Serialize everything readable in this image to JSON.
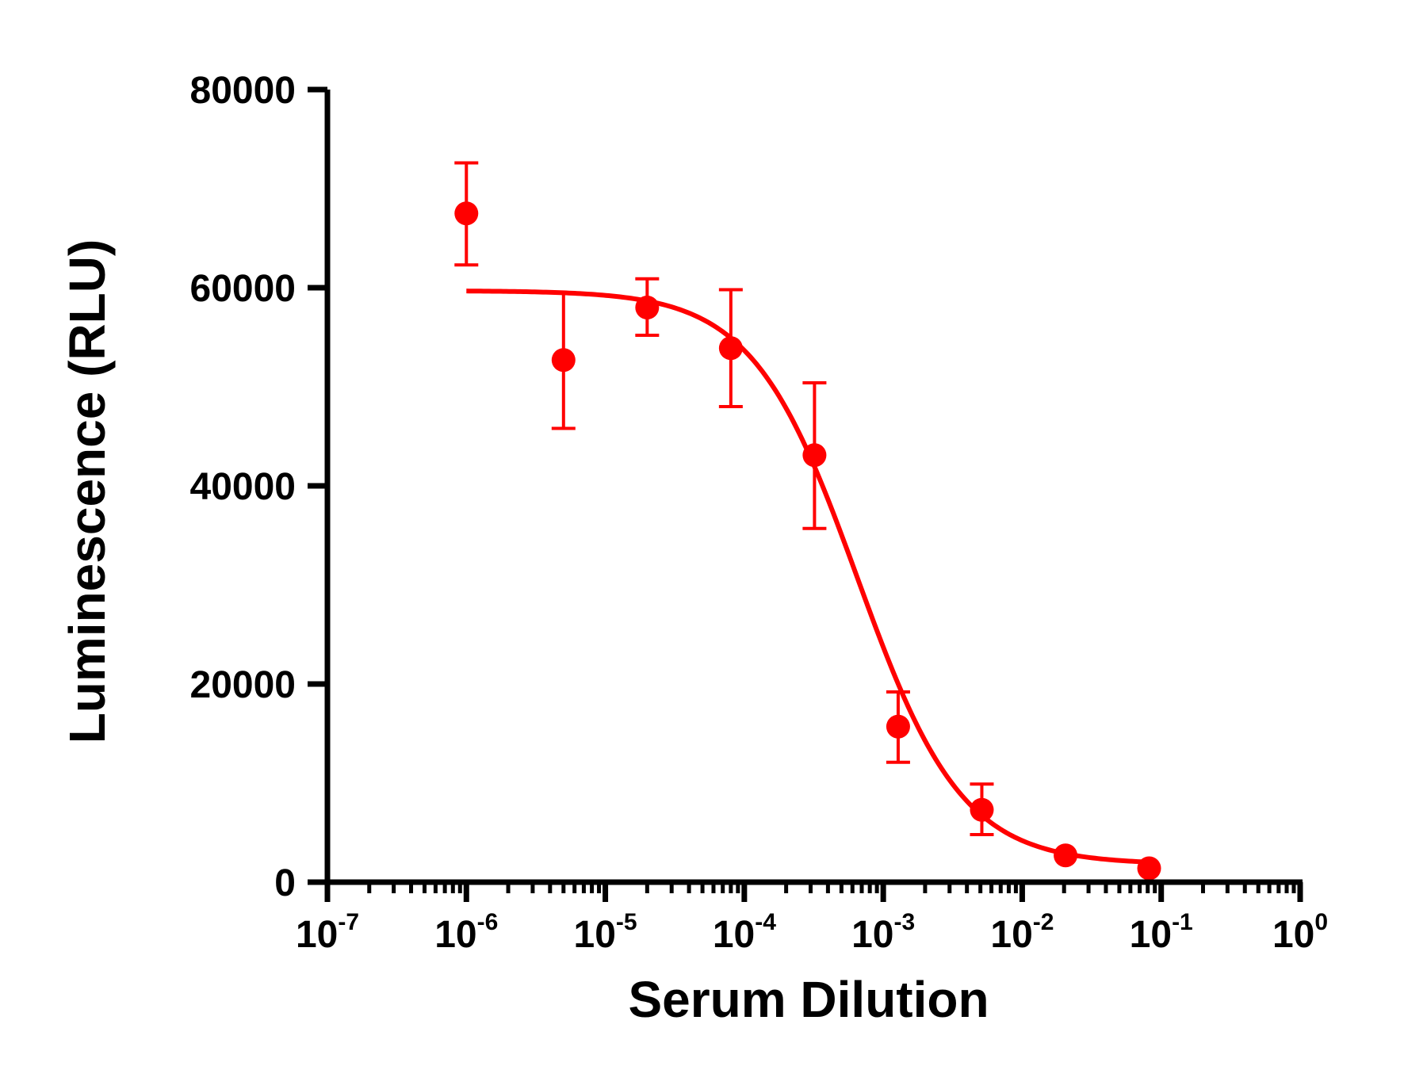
{
  "chart_data": {
    "type": "scatter",
    "xlabel": "Serum Dilution",
    "ylabel": "Luminescence (RLU)",
    "x_scale": "log10",
    "xlim": [
      1e-07,
      1
    ],
    "ylim": [
      0,
      80000
    ],
    "x_ticks": [
      {
        "base": "10",
        "exp": "-7",
        "value": 1e-07
      },
      {
        "base": "10",
        "exp": "-6",
        "value": 1e-06
      },
      {
        "base": "10",
        "exp": "-5",
        "value": 1e-05
      },
      {
        "base": "10",
        "exp": "-4",
        "value": 0.0001
      },
      {
        "base": "10",
        "exp": "-3",
        "value": 0.001
      },
      {
        "base": "10",
        "exp": "-2",
        "value": 0.01
      },
      {
        "base": "10",
        "exp": "-1",
        "value": 0.1
      },
      {
        "base": "10",
        "exp": "0",
        "value": 1
      }
    ],
    "y_ticks": [
      {
        "label": "0",
        "value": 0
      },
      {
        "label": "20000",
        "value": 20000
      },
      {
        "label": "40000",
        "value": 40000
      },
      {
        "label": "60000",
        "value": 60000
      },
      {
        "label": "80000",
        "value": 80000
      }
    ],
    "grid": false,
    "color": "#ff0000",
    "series": [
      {
        "points": [
          {
            "x": 1e-06,
            "y": 67500,
            "err_low": 62300,
            "err_high": 72600
          },
          {
            "x": 5e-06,
            "y": 52700,
            "err_low": 45800,
            "err_high": 59500
          },
          {
            "x": 2e-05,
            "y": 58000,
            "err_low": 55200,
            "err_high": 60900
          },
          {
            "x": 8e-05,
            "y": 53900,
            "err_low": 48000,
            "err_high": 59800
          },
          {
            "x": 0.00032,
            "y": 43100,
            "err_low": 35700,
            "err_high": 50400
          },
          {
            "x": 0.00128,
            "y": 15700,
            "err_low": 12100,
            "err_high": 19200
          },
          {
            "x": 0.00512,
            "y": 7300,
            "err_low": 4800,
            "err_high": 9900
          },
          {
            "x": 0.0205,
            "y": 2700,
            "err_low": 2700,
            "err_high": 2700
          },
          {
            "x": 0.0819,
            "y": 1400,
            "err_low": 1400,
            "err_high": 1400
          }
        ],
        "fit": {
          "model": "four-parameter logistic",
          "top": 59700,
          "bottom": 1800,
          "ic50": 0.00065,
          "hill": 1.15,
          "x_range": [
            1e-06,
            0.0819
          ]
        }
      }
    ]
  }
}
